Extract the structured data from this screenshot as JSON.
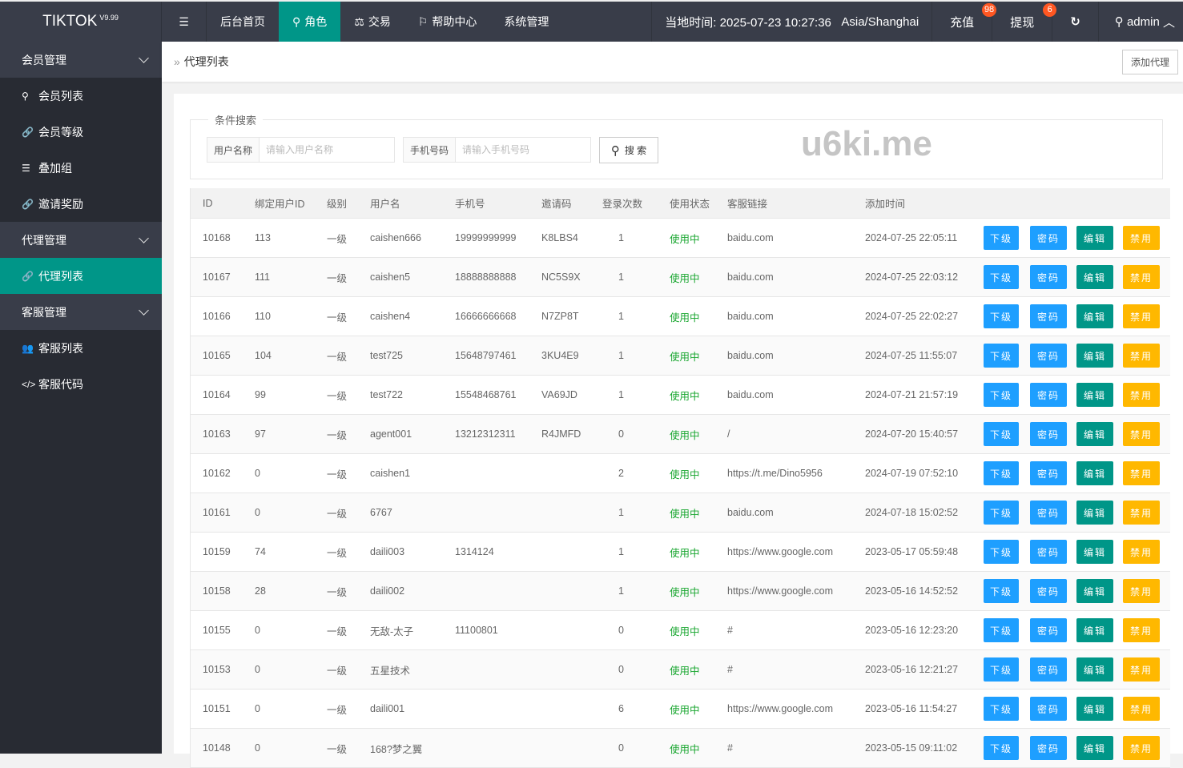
{
  "app": {
    "logo": "TIKTOK",
    "version": "V9.99"
  },
  "topnav": [
    {
      "label": "后台首页",
      "icon": ""
    },
    {
      "label": "角色",
      "icon": "user-icon",
      "active": true
    },
    {
      "label": "交易",
      "icon": "scale-icon"
    },
    {
      "label": "帮助中心",
      "icon": "flag-icon"
    },
    {
      "label": "系统管理",
      "icon": ""
    }
  ],
  "header": {
    "time_label": "当地时间: 2025-07-23 10:27:36",
    "timezone": "Asia/Shanghai",
    "recharge": "充值",
    "recharge_badge": "98",
    "withdraw": "提现",
    "withdraw_badge": "6",
    "user": "admin"
  },
  "sidebar": [
    {
      "type": "group",
      "label": "会员管理"
    },
    {
      "type": "item",
      "label": "会员列表",
      "icon": "user-icon"
    },
    {
      "type": "item",
      "label": "会员等级",
      "icon": "link-icon"
    },
    {
      "type": "item",
      "label": "叠加组",
      "icon": "list-icon"
    },
    {
      "type": "item",
      "label": "邀请奖励",
      "icon": "link-icon"
    },
    {
      "type": "group",
      "label": "代理管理"
    },
    {
      "type": "item",
      "label": "代理列表",
      "icon": "link-icon",
      "active": true
    },
    {
      "type": "group",
      "label": "客服管理"
    },
    {
      "type": "item",
      "label": "客服列表",
      "icon": "users-icon"
    },
    {
      "type": "item",
      "label": "客服代码",
      "icon": "code-icon"
    }
  ],
  "breadcrumb": {
    "current": "代理列表",
    "add_button": "添加代理"
  },
  "search": {
    "legend": "条件搜索",
    "username_label": "用户名称",
    "username_placeholder": "请输入用户名称",
    "phone_label": "手机号码",
    "phone_placeholder": "请输入手机号码",
    "button": "搜 索"
  },
  "table": {
    "columns": [
      "ID",
      "绑定用户ID",
      "级别",
      "用户名",
      "手机号",
      "邀请码",
      "登录次数",
      "使用状态",
      "客服链接",
      "添加时间"
    ],
    "actions": [
      "下级",
      "密码",
      "编辑",
      "禁用"
    ],
    "rows": [
      [
        "10168",
        "113",
        "一级",
        "caishen666",
        "19999999999",
        "K8LBS4",
        "1",
        "使用中",
        "baidu.com",
        "2024-07-25 22:05:11"
      ],
      [
        "10167",
        "111",
        "一级",
        "caishen5",
        "18888888888",
        "NC5S9X",
        "1",
        "使用中",
        "baidu.com",
        "2024-07-25 22:03:12"
      ],
      [
        "10166",
        "110",
        "一级",
        "caishen4",
        "16666666668",
        "N7ZP8T",
        "1",
        "使用中",
        "baidu.com",
        "2024-07-25 22:02:27"
      ],
      [
        "10165",
        "104",
        "一级",
        "test725",
        "15648797461",
        "3KU4E9",
        "1",
        "使用中",
        "baidu.com",
        "2024-07-25 11:55:07"
      ],
      [
        "10164",
        "99",
        "一级",
        "test722",
        "15548468761",
        "VA69JD",
        "1",
        "使用中",
        "baidu.com",
        "2024-07-21 21:57:19"
      ],
      [
        "10163",
        "97",
        "一级",
        "agent001",
        "13212312311",
        "R4JMFD",
        "0",
        "使用中",
        "/",
        "2024-07-20 15:40:57"
      ],
      [
        "10162",
        "0",
        "一级",
        "caishen1",
        "",
        "",
        "2",
        "使用中",
        "https://t.me/Dino5956",
        "2024-07-19 07:52:10"
      ],
      [
        "10161",
        "0",
        "一级",
        "6767",
        "",
        "",
        "1",
        "使用中",
        "baidu.com",
        "2024-07-18 15:02:52"
      ],
      [
        "10159",
        "74",
        "一级",
        "daili003",
        "1314124",
        "",
        "1",
        "使用中",
        "https://www.google.com",
        "2023-05-17 05:59:48"
      ],
      [
        "10158",
        "28",
        "一级",
        "daili002",
        "",
        "",
        "1",
        "使用中",
        "https://www.google.com",
        "2023-05-16 14:52:52"
      ],
      [
        "10155",
        "0",
        "一级",
        "无敌-太子",
        "11100801",
        "",
        "0",
        "使用中",
        "#",
        "2023-05-16 12:23:20"
      ],
      [
        "10153",
        "0",
        "一级",
        "五星技术",
        "",
        "",
        "0",
        "使用中",
        "#",
        "2023-05-16 12:21:27"
      ],
      [
        "10151",
        "0",
        "一级",
        "daili001",
        "",
        "",
        "6",
        "使用中",
        "https://www.google.com",
        "2023-05-16 11:54:27"
      ],
      [
        "10148",
        "0",
        "一级",
        "168?梦之翼",
        "",
        "",
        "0",
        "使用中",
        "#",
        "2023-05-15 09:11:02"
      ]
    ]
  },
  "watermark": "u6ki.me",
  "colors": {
    "topbar": "#393d49",
    "sidebar": "#282b33",
    "accent": "#009688",
    "blue": "#1e9fff",
    "orange": "#ffb800",
    "badge": "#ff5722",
    "status": "#18a62f"
  }
}
